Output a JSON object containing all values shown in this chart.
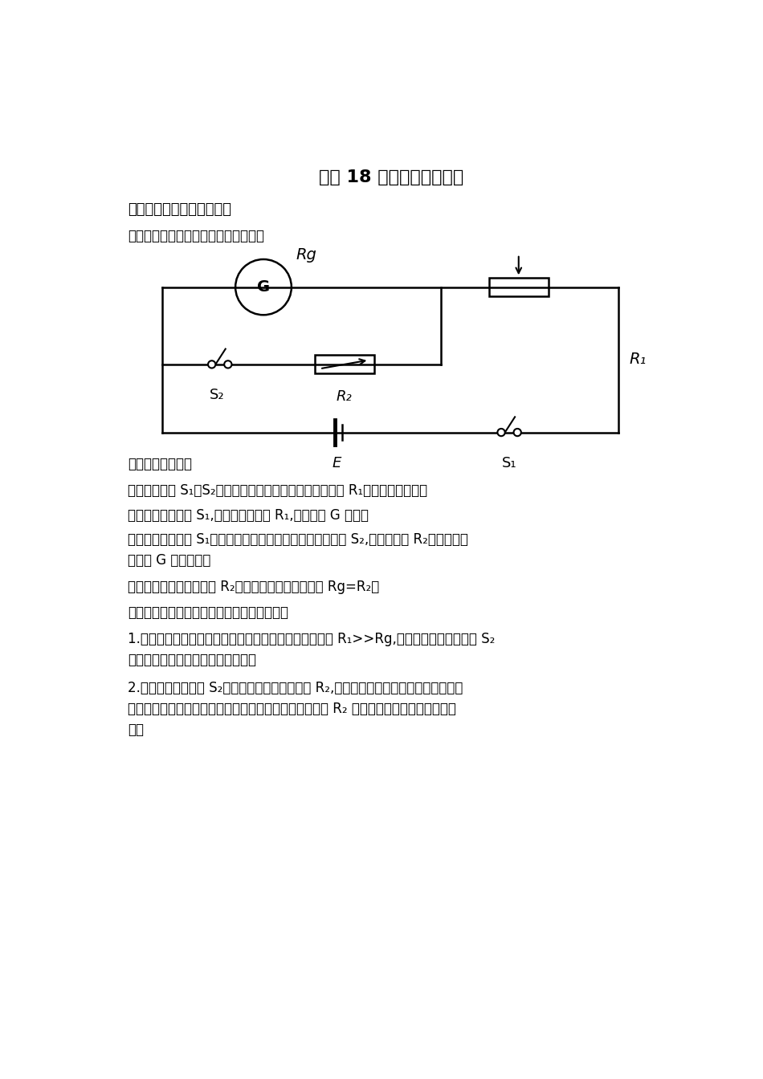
{
  "title": "专题 18 半偏法电表测内阻",
  "section1_bold": "知识点一、测电流表的内阻",
  "subsection1": "一、半偏法测电流表的内阻实验电路图",
  "subsection2": "二、实验操作步骤",
  "step1": "第一步：开关 S₁、S₂断开，连接电路图，并将滑动变阻器 R₁的阻值调到最大。",
  "step2": "第二步：闭合开关 S₁,调节滑动变阻器 R₁,使电流表 G 满偏。",
  "step3_line1": "第三步：保持开关 S₁闭合，保持滑动变阻器不动，闭合开关 S₂,调节电阻箱 R₂的阻值，使",
  "step3_line2": "电流表 G 示数半偏。",
  "step4": "第四步：记下此时电阻箱 R₂的阻值，则电流表的内阻 Rg=R₂。",
  "subsection3": "三、半偏法测电流表的内阻实验系统误差分析",
  "para1_line1": "1.本实验要求滑动变阻器的阻值远大于电流表的内阻，即 R₁>>Rg,这样就可近似认为开关 S₂",
  "para1_line2": "闭合前后干路中的总电流是不变的。",
  "para2_line1": "2.但事实上，当开关 S₂闭合后，因为并入了电阻 R₂,这样，整个系统的总的电阻减小。因",
  "para2_line2": "此，干路中的总电流变大。当电流表半偏时，通过电阻箱 R₂ 的电流比通过电流表的电流要",
  "para2_line3": "大。",
  "bg_color": "#ffffff",
  "text_color": "#000000",
  "line_color": "#000000"
}
